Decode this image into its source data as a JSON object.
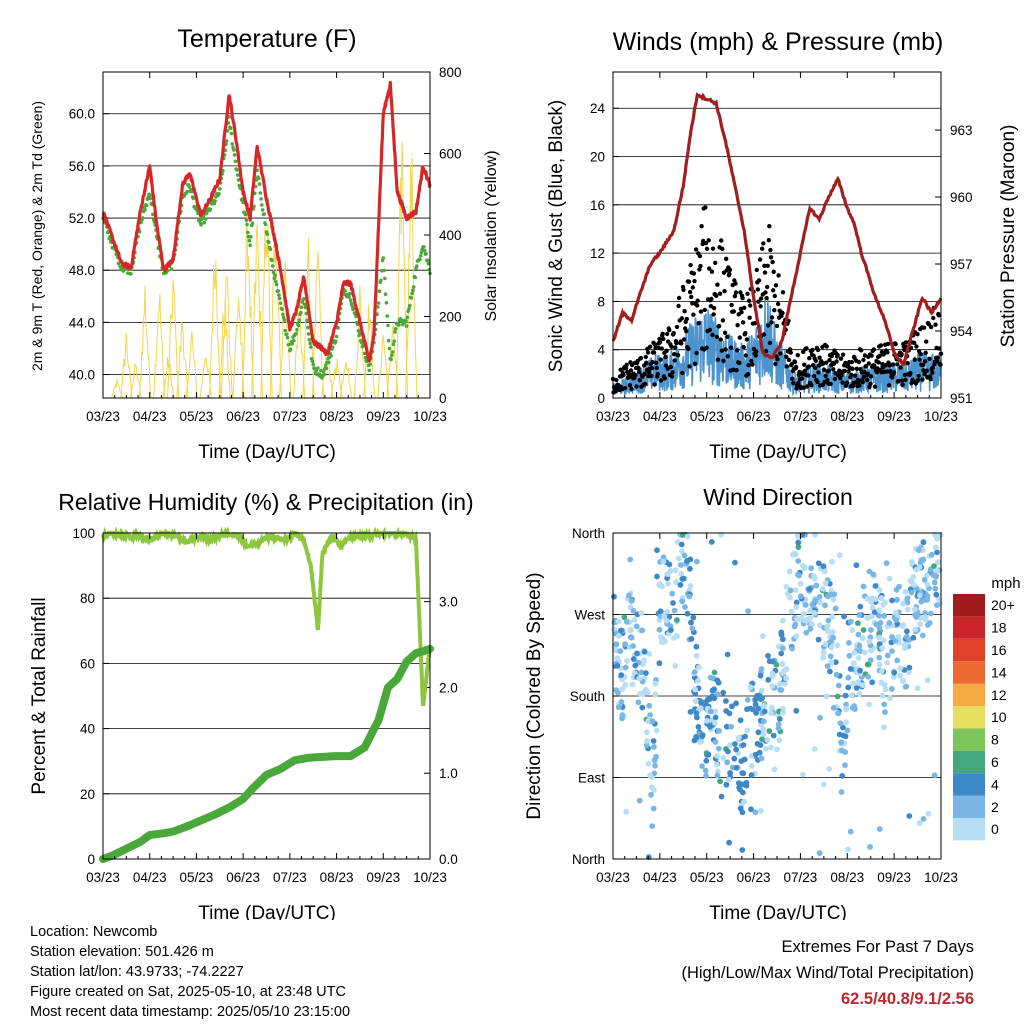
{
  "x_ticks": [
    "03/23",
    "04/23",
    "05/23",
    "06/23",
    "07/23",
    "08/23",
    "09/23",
    "10/23"
  ],
  "colors": {
    "temp": "#d62728",
    "dewpoint": "#4aa83a",
    "solar": "#f2d64b",
    "gust": "#000000",
    "wind": "#4d94cf",
    "pressure": "#a01e1e",
    "rh": "#8dc63f",
    "precip": "#4aa83a"
  },
  "panels": {
    "temperature": {
      "title": "Temperature (F)",
      "xlabel": "Time (Day/UTC)",
      "ylabel_left": "2m & 9m T (Red, Orange) & 2m Td (Green)",
      "ylabel_right": "Solar Insolation (Yellow)"
    },
    "winds": {
      "title": "Winds (mph) & Pressure (mb)",
      "xlabel": "Time (Day/UTC)",
      "ylabel_left": "Sonic Wind & Gust (Blue, Black)",
      "ylabel_right": "Station Pressure (Maroon)"
    },
    "humidity": {
      "title": "Relative Humidity (%) & Precipitation (in)",
      "xlabel": "Time (Day/UTC)",
      "ylabel_left": "Percent & Total Rainfall"
    },
    "direction": {
      "title": "Wind Direction",
      "xlabel": "Time (Day/UTC)",
      "ylabel_left": "Direction (Colored By Speed)",
      "colorbar_title": "mph"
    }
  },
  "chart_data": [
    {
      "type": "line",
      "title": "Temperature (F)",
      "xlabel": "Time (Day/UTC)",
      "ylabel": "2m & 9m T (Red, Orange) & 2m Td (Green)",
      "ylabel_right": "Solar Insolation (Yellow)",
      "x_ticks": [
        "03/23",
        "04/23",
        "05/23",
        "06/23",
        "07/23",
        "08/23",
        "09/23",
        "10/23"
      ],
      "ylim": [
        38.2,
        63.2
      ],
      "y_ticks": [
        "40.0",
        "44.0",
        "48.0",
        "52.0",
        "56.0",
        "60.0"
      ],
      "y2lim": [
        0,
        800
      ],
      "y2_ticks": [
        "0",
        "200",
        "400",
        "600",
        "800"
      ],
      "series": [
        {
          "x": [
            0,
            0.2,
            0.4,
            0.6,
            0.8,
            1.0,
            1.15,
            1.3,
            1.5,
            1.7,
            1.85,
            2.0,
            2.1,
            2.3,
            2.5,
            2.7,
            2.85,
            3.0,
            3.15,
            3.3,
            3.5,
            3.7,
            3.85,
            4.0,
            4.15,
            4.3,
            4.5,
            4.7,
            4.8,
            5.0,
            5.15,
            5.3,
            5.5,
            5.7,
            5.8,
            6.0,
            6.15,
            6.3,
            6.5,
            6.7,
            6.85,
            7.0
          ],
          "values": [
            52.5,
            50.5,
            48.5,
            48.2,
            52.5,
            56.0,
            51.5,
            48.0,
            48.8,
            54.5,
            55.5,
            53.5,
            52.2,
            53.5,
            55.0,
            61.5,
            58.0,
            54.0,
            52.0,
            57.5,
            53.5,
            50.0,
            47.0,
            43.5,
            45.0,
            47.5,
            42.5,
            42.0,
            41.5,
            44.0,
            47.0,
            47.0,
            44.0,
            41.0,
            43.0,
            60.0,
            62.3,
            54.0,
            52.0,
            52.5,
            56.0,
            54.5
          ]
        },
        {
          "x": [
            0,
            0.2,
            0.4,
            0.6,
            0.8,
            1.0,
            1.15,
            1.3,
            1.5,
            1.7,
            1.85,
            2.0,
            2.1,
            2.3,
            2.5,
            2.7,
            2.85,
            3.0,
            3.15,
            3.3,
            3.5,
            3.7,
            3.85,
            4.0,
            4.15,
            4.3,
            4.5,
            4.7,
            4.8,
            5.0,
            5.15,
            5.3,
            5.5,
            5.7,
            5.8,
            6.0,
            6.15,
            6.3,
            6.5,
            6.7,
            6.85,
            7.0
          ],
          "values": [
            52.0,
            50.0,
            48.2,
            48.0,
            51.5,
            54.0,
            50.5,
            47.8,
            48.5,
            53.5,
            54.5,
            52.5,
            51.5,
            52.8,
            54.0,
            59.5,
            56.0,
            53.0,
            50.0,
            55.5,
            51.0,
            47.0,
            44.5,
            42.0,
            43.5,
            46.0,
            40.5,
            40.0,
            40.8,
            43.0,
            46.5,
            46.0,
            43.0,
            40.5,
            42.5,
            49.0,
            41.0,
            44.0,
            44.0,
            48.0,
            50.0,
            48.0
          ]
        },
        {
          "x": [
            0.3,
            0.5,
            0.7,
            0.9,
            1.2,
            1.4,
            1.5,
            1.7,
            1.9,
            2.2,
            2.4,
            2.6,
            2.65,
            2.9,
            3.1,
            3.3,
            3.5,
            3.7,
            3.9,
            4.2,
            4.4,
            4.6,
            4.8,
            5.0,
            5.2,
            5.5,
            5.7,
            6.0,
            6.2,
            6.4,
            6.6
          ],
          "values": [
            50,
            180,
            100,
            320,
            330,
            120,
            360,
            240,
            190,
            150,
            480,
            300,
            380,
            330,
            550,
            520,
            620,
            590,
            400,
            300,
            450,
            410,
            160,
            120,
            140,
            300,
            280,
            200,
            230,
            770,
            700
          ]
        }
      ]
    },
    {
      "type": "line",
      "title": "Winds (mph) & Pressure (mb)",
      "xlabel": "Time (Day/UTC)",
      "ylabel": "Sonic Wind & Gust (Blue, Black)",
      "ylabel_right": "Station Pressure (Maroon)",
      "x_ticks": [
        "03/23",
        "04/23",
        "05/23",
        "06/23",
        "07/23",
        "08/23",
        "09/23",
        "10/23"
      ],
      "ylim": [
        0,
        27
      ],
      "y_ticks": [
        "0",
        "4",
        "8",
        "12",
        "16",
        "20",
        "24"
      ],
      "y2lim": [
        951,
        965.6
      ],
      "y2_ticks": [
        "951",
        "954",
        "957",
        "960",
        "963"
      ],
      "series": [
        {
          "x": [
            0,
            0.3,
            0.6,
            0.9,
            1.2,
            1.5,
            1.7,
            1.85,
            2.0,
            2.2,
            2.4,
            2.5,
            2.8,
            3.0,
            3.15,
            3.3,
            3.5,
            3.7,
            3.85,
            4.0,
            4.3,
            4.6,
            4.9,
            5.1,
            5.3,
            5.6,
            5.9,
            6.1,
            6.3,
            6.5,
            6.7,
            7.0
          ],
          "values": [
            1.5,
            2.5,
            3.0,
            4.0,
            5.0,
            8.0,
            10.0,
            12.0,
            14.0,
            12.0,
            10.5,
            9.0,
            7.0,
            8.0,
            10.0,
            12.5,
            9.0,
            7.0,
            3.0,
            3.0,
            4.5,
            3.5,
            3.0,
            3.0,
            3.5,
            3.5,
            4.0,
            4.0,
            4.0,
            5.0,
            5.5,
            7.0
          ]
        },
        {
          "x": [
            0,
            0.3,
            0.6,
            0.9,
            1.2,
            1.5,
            1.7,
            1.85,
            2.0,
            2.2,
            2.4,
            2.5,
            2.8,
            3.0,
            3.15,
            3.3,
            3.5,
            3.7,
            3.85,
            4.0,
            4.3,
            4.6,
            4.9,
            5.1,
            5.3,
            5.6,
            5.9,
            6.1,
            6.3,
            6.5,
            6.7,
            7.0
          ],
          "values": [
            0.8,
            1.2,
            1.8,
            2.5,
            2.5,
            3.5,
            4.5,
            5.0,
            5.5,
            4.5,
            4.0,
            3.5,
            3.0,
            4.0,
            5.0,
            6.5,
            3.5,
            2.5,
            1.5,
            1.5,
            2.0,
            1.8,
            1.5,
            1.5,
            1.8,
            1.8,
            2.0,
            2.0,
            2.0,
            2.5,
            2.5,
            2.5
          ]
        },
        {
          "x": [
            0,
            0.2,
            0.4,
            0.6,
            0.8,
            1.0,
            1.3,
            1.5,
            1.65,
            1.8,
            1.9,
            2.0,
            2.2,
            2.4,
            2.6,
            2.8,
            3.0,
            3.2,
            3.4,
            3.6,
            3.8,
            4.0,
            4.2,
            4.4,
            4.6,
            4.8,
            5.0,
            5.15,
            5.3,
            5.6,
            5.8,
            6.0,
            6.2,
            6.4,
            6.6,
            6.8,
            7.0
          ],
          "values": [
            953.5,
            954.8,
            954.5,
            955.8,
            957.0,
            957.5,
            958.5,
            960.5,
            962.8,
            964.6,
            964.5,
            964.4,
            964.2,
            962.5,
            960.5,
            958.5,
            955.5,
            953.0,
            952.8,
            953.5,
            955.5,
            957.5,
            959.5,
            959.0,
            960.0,
            960.8,
            959.5,
            958.8,
            957.5,
            955.5,
            954.5,
            953.0,
            952.5,
            954.0,
            955.5,
            954.8,
            955.5
          ]
        }
      ]
    },
    {
      "type": "line",
      "title": "Relative Humidity (%) & Precipitation (in)",
      "xlabel": "Time (Day/UTC)",
      "ylabel": "Percent & Total Rainfall",
      "x_ticks": [
        "03/23",
        "04/23",
        "05/23",
        "06/23",
        "07/23",
        "08/23",
        "09/23",
        "10/23"
      ],
      "ylim": [
        0,
        100
      ],
      "y_ticks": [
        "0",
        "20",
        "40",
        "60",
        "80",
        "100"
      ],
      "y2lim": [
        0,
        3.8
      ],
      "y2_ticks": [
        "0.0",
        "1.0",
        "2.0",
        "3.0"
      ],
      "series": [
        {
          "x": [
            0,
            0.2,
            0.5,
            0.8,
            1.0,
            1.3,
            1.6,
            1.8,
            2.0,
            2.3,
            2.6,
            2.9,
            3.1,
            3.3,
            3.6,
            3.9,
            4.1,
            4.3,
            4.45,
            4.6,
            4.7,
            4.9,
            5.1,
            5.3,
            5.6,
            5.9,
            6.2,
            6.5,
            6.7,
            6.85,
            7.0
          ],
          "values": [
            99,
            100,
            99,
            99,
            98,
            100,
            99,
            97,
            99,
            98,
            100,
            99,
            96,
            97,
            99,
            98,
            100,
            98,
            90,
            70,
            94,
            99,
            96,
            99,
            99,
            100,
            100,
            100,
            98,
            47,
            65
          ]
        },
        {
          "x": [
            0,
            0.2,
            0.5,
            0.8,
            1.0,
            1.3,
            1.5,
            1.8,
            2.1,
            2.4,
            2.7,
            3.0,
            3.2,
            3.5,
            3.8,
            4.1,
            4.4,
            4.7,
            5.0,
            5.3,
            5.6,
            5.9,
            6.1,
            6.3,
            6.5,
            6.7,
            6.85,
            7.0
          ],
          "values": [
            0.0,
            0.04,
            0.12,
            0.2,
            0.28,
            0.3,
            0.32,
            0.38,
            0.45,
            0.52,
            0.6,
            0.7,
            0.82,
            0.98,
            1.05,
            1.15,
            1.18,
            1.19,
            1.2,
            1.2,
            1.3,
            1.62,
            2.0,
            2.1,
            2.3,
            2.4,
            2.42,
            2.45
          ]
        }
      ]
    },
    {
      "type": "scatter",
      "title": "Wind Direction",
      "xlabel": "Time (Day/UTC)",
      "ylabel": "Direction (Colored By Speed)",
      "x_ticks": [
        "03/23",
        "04/23",
        "05/23",
        "06/23",
        "07/23",
        "08/23",
        "09/23",
        "10/23"
      ],
      "y_ticks": [
        "North",
        "East",
        "South",
        "West",
        "North"
      ],
      "ylim": [
        0,
        360
      ],
      "colorbar_ticks": [
        "0",
        "2",
        "4",
        "6",
        "8",
        "10",
        "12",
        "14",
        "16",
        "18",
        "20+"
      ],
      "colorbar_colors": [
        "#b7def5",
        "#7ab6e4",
        "#3f88c8",
        "#44a87e",
        "#7dc45b",
        "#e6de61",
        "#f5a945",
        "#ec6931",
        "#df4228",
        "#c9242a",
        "#9e1c20"
      ],
      "series": [
        {
          "x": [
            0.05,
            0.2,
            0.35,
            0.5,
            0.6,
            0.7,
            0.85,
            1.0,
            1.15,
            1.3,
            1.45,
            1.6,
            1.75,
            1.85,
            1.95,
            2.05,
            2.15,
            2.3,
            2.45,
            2.6,
            2.75,
            2.9,
            3.05,
            3.2,
            3.35,
            3.5,
            3.6,
            3.7,
            3.85,
            4.0,
            4.15,
            4.3,
            4.45,
            4.6,
            4.75,
            4.9,
            5.05,
            5.2,
            5.35,
            5.5,
            5.65,
            5.8,
            5.95,
            6.1,
            6.25,
            6.4,
            6.55,
            6.7,
            6.85
          ],
          "values": [
            240,
            200,
            255,
            215,
            230,
            180,
            60,
            280,
            300,
            250,
            340,
            320,
            200,
            150,
            145,
            140,
            155,
            135,
            120,
            130,
            100,
            140,
            145,
            160,
            175,
            170,
            200,
            255,
            290,
            310,
            300,
            320,
            280,
            260,
            240,
            100,
            230,
            200,
            250,
            270,
            280,
            210,
            230,
            250,
            240,
            280,
            300,
            300,
            330
          ]
        }
      ]
    }
  ],
  "info": {
    "location": "Location: Newcomb",
    "elevation": "Station elevation: 501.426 m",
    "latlon": "Station lat/lon: 43.9733; -74.2227",
    "created": "Figure created on Sat, 2025-05-10, at 23:48 UTC",
    "recent": "Most recent data timestamp: 2025/05/10 23:15:00"
  },
  "extremes": {
    "title": "Extremes For Past 7 Days",
    "subtitle": "(High/Low/Max Wind/Total Precipitation)",
    "values": "62.5/40.8/9.1/2.56"
  }
}
